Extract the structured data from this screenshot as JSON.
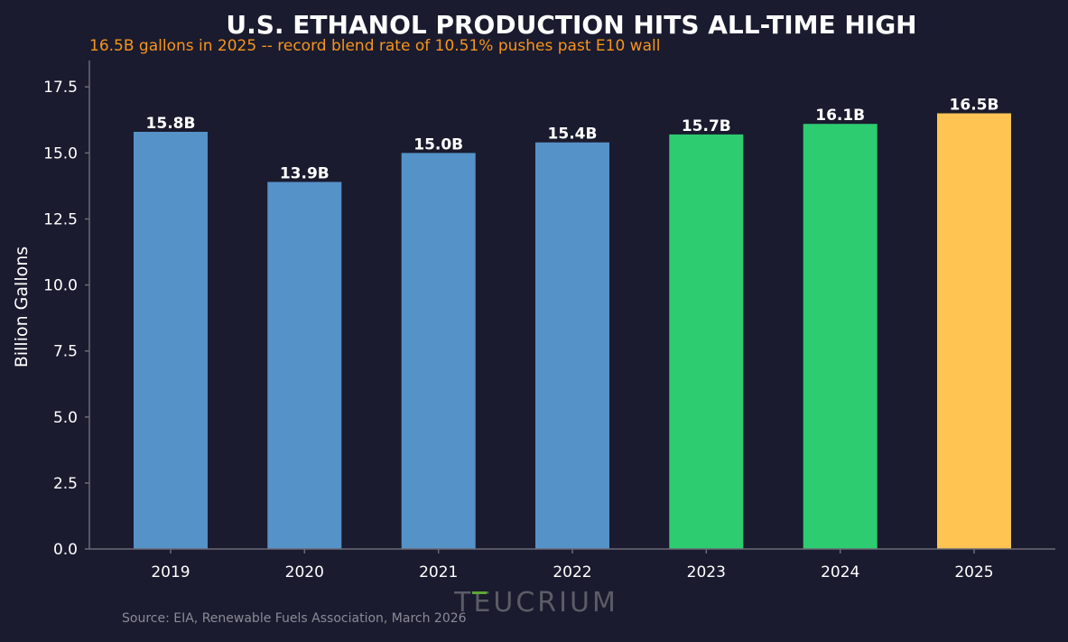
{
  "chart_data": {
    "type": "bar",
    "title": "U.S. ETHANOL PRODUCTION HITS ALL-TIME HIGH",
    "subtitle": "16.5B gallons in 2025 -- record blend rate of 10.51% pushes past E10 wall",
    "xlabel": "",
    "ylabel": "Billion Gallons",
    "categories": [
      "2019",
      "2020",
      "2021",
      "2022",
      "2023",
      "2024",
      "2025"
    ],
    "values": [
      15.8,
      13.9,
      15.0,
      15.4,
      15.7,
      16.1,
      16.5
    ],
    "data_labels": [
      "15.8B",
      "13.9B",
      "15.0B",
      "15.4B",
      "15.7B",
      "16.1B",
      "16.5B"
    ],
    "bar_colors": [
      "#5592c8",
      "#5592c8",
      "#5592c8",
      "#5592c8",
      "#2ecc71",
      "#2ecc71",
      "#ffc452"
    ],
    "ylim": [
      0,
      18.5
    ],
    "yticks": [
      0.0,
      2.5,
      5.0,
      7.5,
      10.0,
      12.5,
      15.0,
      17.5
    ],
    "ytick_labels": [
      "0.0",
      "2.5",
      "5.0",
      "7.5",
      "10.0",
      "12.5",
      "15.0",
      "17.5"
    ],
    "grid": false,
    "legend": "none",
    "source": "Source: EIA, Renewable Fuels Association, March 2026",
    "watermark": "TEUCRIUM"
  },
  "colors": {
    "background": "#1a1b2e",
    "axis": "#6a6b76",
    "title": "#ffffff",
    "subtitle": "#f7941d"
  }
}
